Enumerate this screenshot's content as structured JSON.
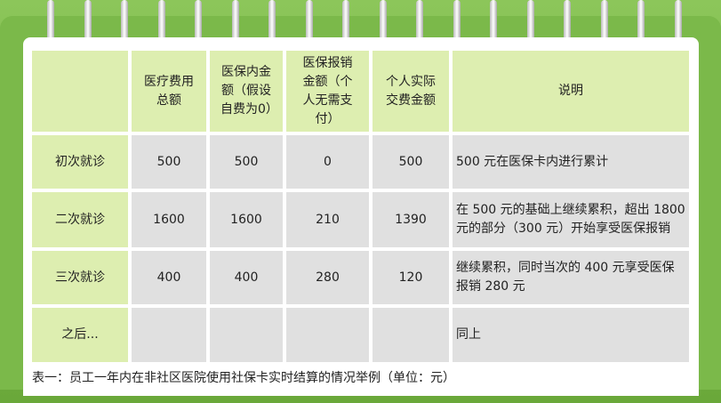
{
  "table": {
    "headers": [
      "",
      "医疗费用总额",
      "医保内金额（假设自费为0）",
      "医保报销金额（个人无需支付）",
      "个人实际交费金额",
      "说明"
    ],
    "rows": [
      [
        "初次就诊",
        "500",
        "500",
        "0",
        "500",
        "500 元在医保卡内进行累计"
      ],
      [
        "二次就诊",
        "1600",
        "1600",
        "210",
        "1390",
        "在 500 元的基础上继续累积，超出 1800 元的部分（300 元）开始享受医保报销"
      ],
      [
        "三次就诊",
        "400",
        "400",
        "280",
        "120",
        "继续累积，同时当次的 400 元享受医保报销 280 元"
      ],
      [
        "之后...",
        "",
        "",
        "",
        "",
        "同上"
      ]
    ]
  },
  "caption": "表一：员工一年内在非社区医院使用社保卡实时结算的情况举例（单位：元）",
  "colors": {
    "background": "#7bb94a",
    "header_fill": "#ddeeb0",
    "cell_fill": "#e0e0e0"
  }
}
